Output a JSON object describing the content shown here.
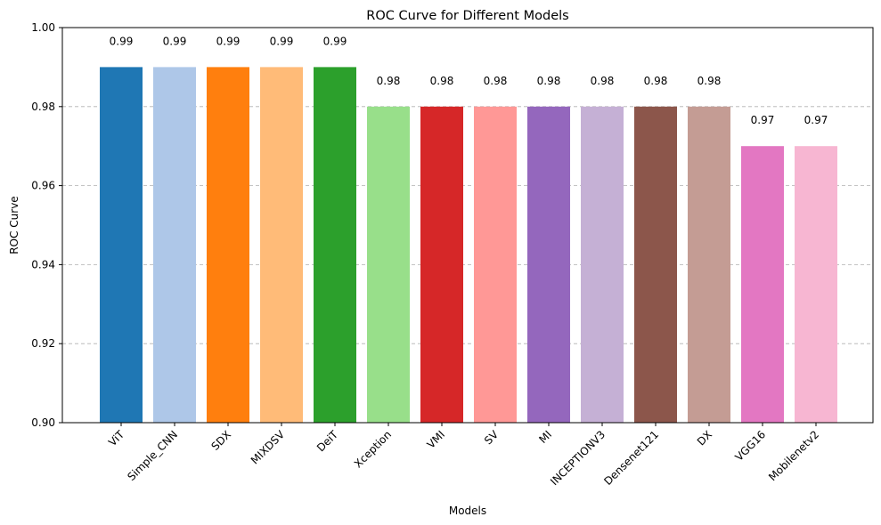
{
  "chart_data": {
    "type": "bar",
    "title": "ROC Curve for Different Models",
    "xlabel": "Models",
    "ylabel": "ROC Curve",
    "ylim": [
      0.9,
      1.0
    ],
    "yticks": [
      "0.90",
      "0.92",
      "0.94",
      "0.96",
      "0.98",
      "1.00"
    ],
    "grid": "y-dashed",
    "categories": [
      "ViT",
      "Simple_CNN",
      "SDX",
      "MIXDSV",
      "DeiT",
      "Xception",
      "VMI",
      "SV",
      "MI",
      "INCEPTIONV3",
      "Densenet121",
      "DX",
      "VGG16",
      "Mobilenetv2"
    ],
    "values": [
      0.99,
      0.99,
      0.99,
      0.99,
      0.99,
      0.98,
      0.98,
      0.98,
      0.98,
      0.98,
      0.98,
      0.98,
      0.97,
      0.97
    ],
    "data_labels": [
      "0.99",
      "0.99",
      "0.99",
      "0.99",
      "0.99",
      "0.98",
      "0.98",
      "0.98",
      "0.98",
      "0.98",
      "0.98",
      "0.98",
      "0.97",
      "0.97"
    ],
    "colors": [
      "#1f77b4",
      "#aec7e8",
      "#ff7f0e",
      "#ffbb78",
      "#2ca02c",
      "#98df8a",
      "#d62728",
      "#ff9896",
      "#9467bd",
      "#c5b0d5",
      "#8c564b",
      "#c49c94",
      "#e377c2",
      "#f7b6d2"
    ]
  }
}
